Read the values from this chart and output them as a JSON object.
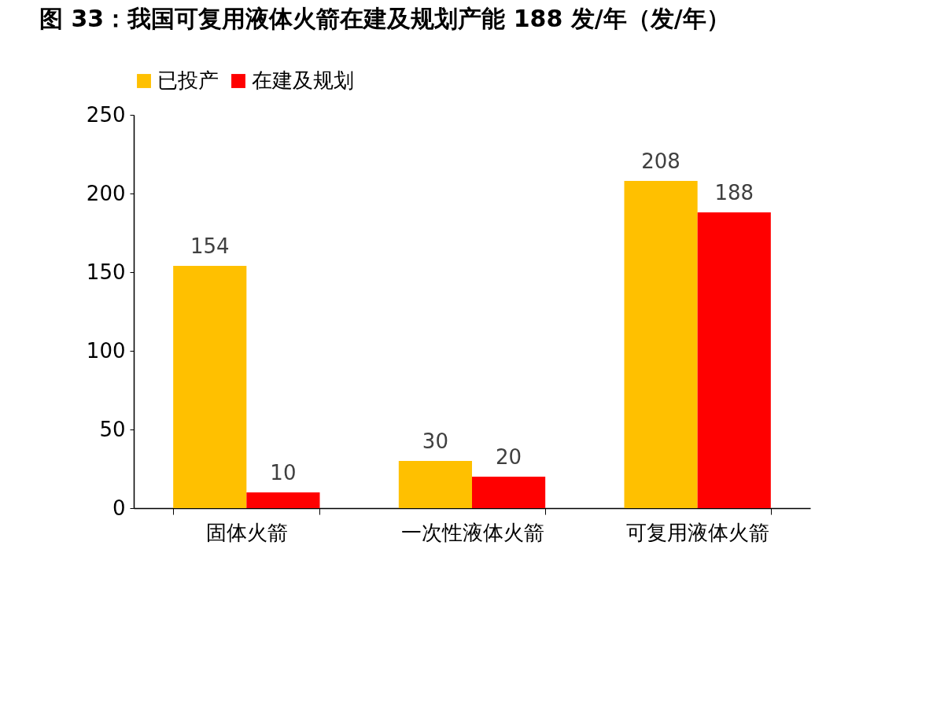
{
  "chart_data": {
    "type": "bar",
    "title": "图 33：我国可复用液体火箭在建及规划产能 188 发/年（发/年）",
    "categories": [
      "固体火箭",
      "一次性液体火箭",
      "可复用液体火箭"
    ],
    "series": [
      {
        "name": "已投产",
        "color": "#ffc000",
        "values": [
          154,
          30,
          208
        ]
      },
      {
        "name": "在建及规划",
        "color": "#ff0000",
        "values": [
          10,
          20,
          188
        ]
      }
    ],
    "ylim": [
      0,
      250
    ],
    "yticks": [
      0,
      50,
      100,
      150,
      200,
      250
    ],
    "grid": false,
    "legend": "top",
    "data_labels": true
  }
}
